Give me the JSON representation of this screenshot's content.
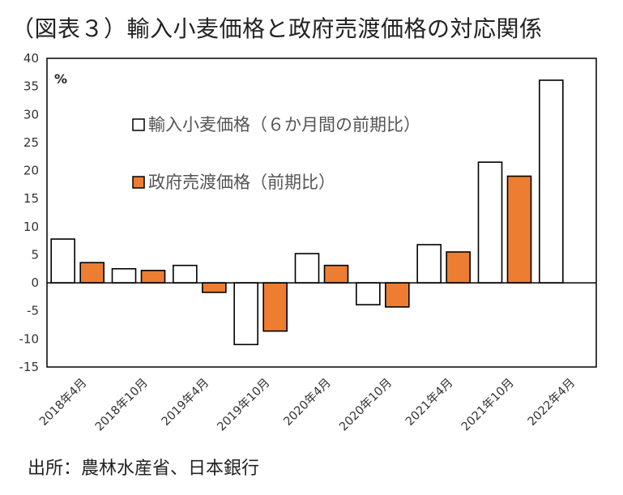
{
  "title": "（図表３）輸入小麦価格と政府売渡価格の対応関係",
  "source": "出所：農林水産省、日本銀行",
  "chart_data": {
    "type": "bar",
    "unit": "%",
    "categories": [
      "2018年4月",
      "2018年10月",
      "2019年4月",
      "2019年10月",
      "2020年4月",
      "2020年10月",
      "2021年4月",
      "2021年10月",
      "2022年4月"
    ],
    "series": [
      {
        "name": "輸入小麦価格（６か月間の前期比）",
        "color": "#ffffff",
        "values": [
          7.8,
          2.5,
          3.1,
          -11.0,
          5.2,
          -3.9,
          6.8,
          21.5,
          36.1
        ]
      },
      {
        "name": "政府売渡価格（前期比）",
        "color": "#ed7d31",
        "values": [
          3.6,
          2.2,
          -1.7,
          -8.6,
          3.1,
          -4.3,
          5.5,
          19.0,
          null
        ]
      }
    ],
    "ylim": [
      -15,
      40
    ],
    "yticks": [
      -15,
      -10,
      -5,
      0,
      5,
      10,
      15,
      20,
      25,
      30,
      35,
      40
    ],
    "grid": false,
    "legend": "inside-top-left"
  }
}
